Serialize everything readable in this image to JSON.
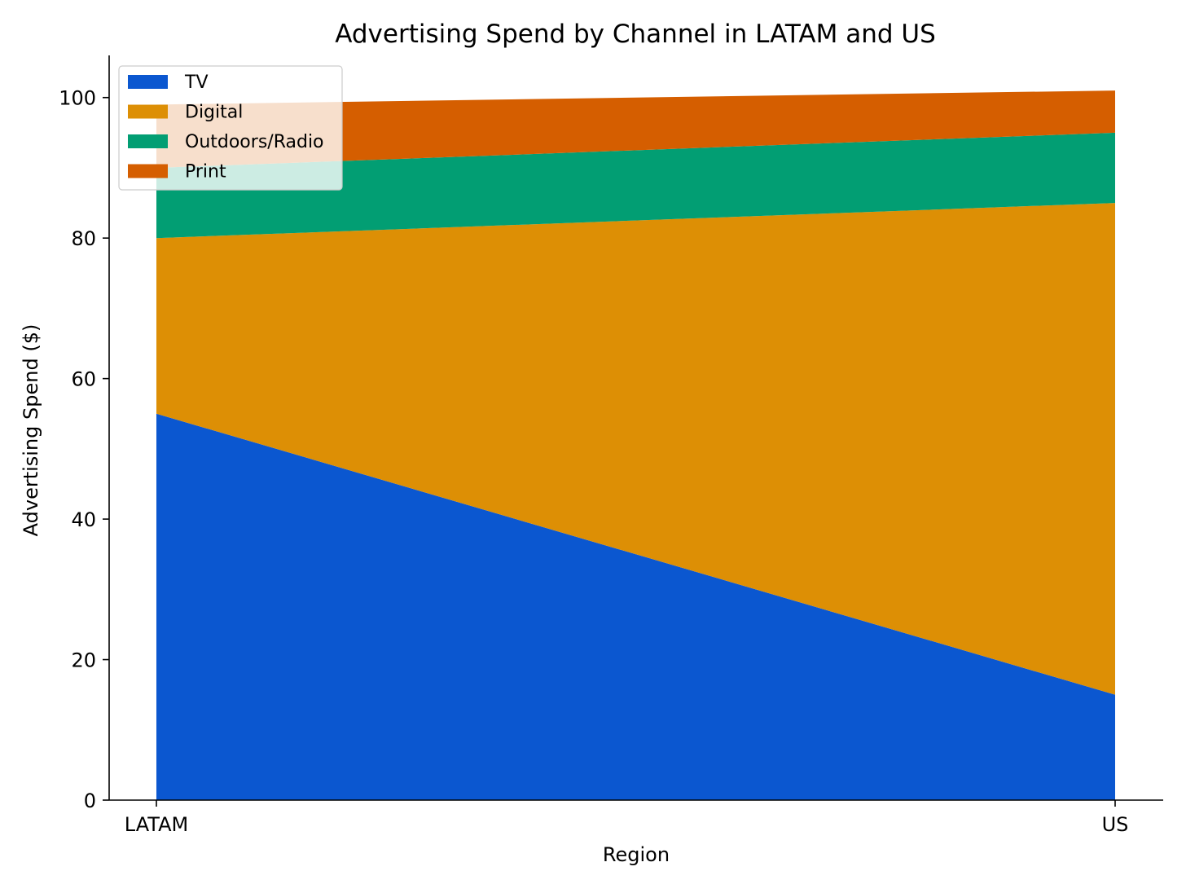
{
  "chart_data": {
    "type": "area",
    "stacked": true,
    "title": "Advertising Spend by Channel in LATAM and US",
    "xlabel": "Region",
    "ylabel": "Advertising Spend ($)",
    "categories": [
      "LATAM",
      "US"
    ],
    "ylim": [
      0,
      106
    ],
    "yticks": [
      0,
      20,
      40,
      60,
      80,
      100
    ],
    "grid": false,
    "legend_position": "top-left",
    "series": [
      {
        "name": "TV",
        "values": [
          55,
          15
        ],
        "color": "#0b57d0"
      },
      {
        "name": "Digital",
        "values": [
          25,
          70
        ],
        "color": "#dd8f05"
      },
      {
        "name": "Outdoors/Radio",
        "values": [
          10,
          10
        ],
        "color": "#029e73"
      },
      {
        "name": "Print",
        "values": [
          9,
          6
        ],
        "color": "#d55e00"
      }
    ]
  }
}
